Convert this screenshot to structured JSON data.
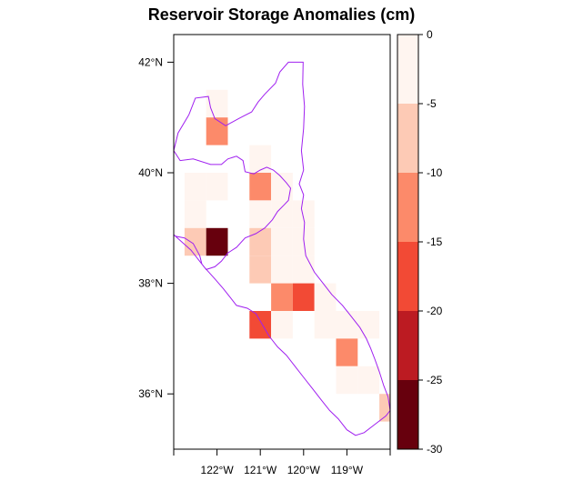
{
  "title": "Reservoir Storage Anomalies  (cm)",
  "map": {
    "lon_range": [
      -123.0,
      -118.0
    ],
    "lat_range": [
      35.0,
      42.5
    ],
    "cell_size_deg": 0.5,
    "x_ticks": [
      {
        "value": -122,
        "label": "122°W"
      },
      {
        "value": -121,
        "label": "121°W"
      },
      {
        "value": -120,
        "label": "120°W"
      },
      {
        "value": -119,
        "label": "119°W"
      }
    ],
    "y_ticks": [
      {
        "value": 36,
        "label": "36°N"
      },
      {
        "value": 38,
        "label": "38°N"
      },
      {
        "value": 40,
        "label": "40°N"
      },
      {
        "value": 42,
        "label": "42°N"
      }
    ],
    "boundary_color": "#a020f0",
    "cells": [
      {
        "lon": -122.0,
        "lat": 41.25,
        "bin": 0
      },
      {
        "lon": -122.0,
        "lat": 40.75,
        "bin": 2
      },
      {
        "lon": -121.0,
        "lat": 40.25,
        "bin": 0
      },
      {
        "lon": -122.5,
        "lat": 39.75,
        "bin": 0
      },
      {
        "lon": -122.0,
        "lat": 39.75,
        "bin": 0
      },
      {
        "lon": -121.0,
        "lat": 39.75,
        "bin": 2
      },
      {
        "lon": -120.5,
        "lat": 39.75,
        "bin": 0
      },
      {
        "lon": -122.5,
        "lat": 39.25,
        "bin": 0
      },
      {
        "lon": -121.0,
        "lat": 39.25,
        "bin": 0
      },
      {
        "lon": -120.5,
        "lat": 39.25,
        "bin": 0
      },
      {
        "lon": -120.0,
        "lat": 39.25,
        "bin": 0
      },
      {
        "lon": -122.5,
        "lat": 38.75,
        "bin": 1
      },
      {
        "lon": -122.0,
        "lat": 38.75,
        "bin": 5
      },
      {
        "lon": -121.0,
        "lat": 38.75,
        "bin": 1
      },
      {
        "lon": -120.5,
        "lat": 38.75,
        "bin": 0
      },
      {
        "lon": -120.0,
        "lat": 38.75,
        "bin": 0
      },
      {
        "lon": -121.0,
        "lat": 38.25,
        "bin": 1
      },
      {
        "lon": -120.5,
        "lat": 38.25,
        "bin": 0
      },
      {
        "lon": -120.0,
        "lat": 38.25,
        "bin": 0
      },
      {
        "lon": -120.5,
        "lat": 37.75,
        "bin": 2
      },
      {
        "lon": -120.0,
        "lat": 37.75,
        "bin": 3
      },
      {
        "lon": -119.5,
        "lat": 37.75,
        "bin": 0
      },
      {
        "lon": -121.0,
        "lat": 37.25,
        "bin": 3
      },
      {
        "lon": -120.5,
        "lat": 37.25,
        "bin": 0
      },
      {
        "lon": -119.5,
        "lat": 37.25,
        "bin": 0
      },
      {
        "lon": -119.0,
        "lat": 37.25,
        "bin": 0
      },
      {
        "lon": -118.5,
        "lat": 37.25,
        "bin": 0
      },
      {
        "lon": -119.0,
        "lat": 36.75,
        "bin": 2
      },
      {
        "lon": -119.0,
        "lat": 36.25,
        "bin": 0
      },
      {
        "lon": -118.5,
        "lat": 36.25,
        "bin": 0
      },
      {
        "lon": -118.0,
        "lat": 35.75,
        "bin": 1
      }
    ],
    "boundary": [
      [
        -120.01,
        42.0
      ],
      [
        -120.35,
        42.0
      ],
      [
        -120.55,
        41.82
      ],
      [
        -120.65,
        41.62
      ],
      [
        -120.9,
        41.42
      ],
      [
        -121.05,
        41.28
      ],
      [
        -121.2,
        41.1
      ],
      [
        -121.5,
        40.98
      ],
      [
        -121.8,
        40.85
      ],
      [
        -122.05,
        40.98
      ],
      [
        -122.15,
        41.18
      ],
      [
        -122.2,
        41.38
      ],
      [
        -122.5,
        41.35
      ],
      [
        -122.65,
        41.05
      ],
      [
        -122.9,
        40.72
      ],
      [
        -123.0,
        40.4
      ],
      [
        -122.85,
        40.22
      ],
      [
        -122.55,
        40.25
      ],
      [
        -122.15,
        40.15
      ],
      [
        -121.9,
        40.15
      ],
      [
        -121.75,
        40.25
      ],
      [
        -121.55,
        40.3
      ],
      [
        -121.4,
        40.22
      ],
      [
        -121.35,
        40.02
      ],
      [
        -121.15,
        39.98
      ],
      [
        -121.0,
        40.05
      ],
      [
        -120.85,
        40.1
      ],
      [
        -120.7,
        40.05
      ],
      [
        -120.55,
        39.95
      ],
      [
        -120.4,
        39.82
      ],
      [
        -120.3,
        39.72
      ],
      [
        -120.35,
        39.5
      ],
      [
        -120.45,
        39.42
      ],
      [
        -120.6,
        39.3
      ],
      [
        -120.72,
        39.15
      ],
      [
        -120.9,
        39.0
      ],
      [
        -121.1,
        38.9
      ],
      [
        -121.35,
        38.82
      ],
      [
        -121.55,
        38.65
      ],
      [
        -121.75,
        38.55
      ],
      [
        -121.9,
        38.4
      ],
      [
        -122.05,
        38.3
      ],
      [
        -122.25,
        38.25
      ],
      [
        -122.35,
        38.35
      ],
      [
        -122.4,
        38.5
      ],
      [
        -122.55,
        38.72
      ],
      [
        -122.75,
        38.82
      ],
      [
        -122.95,
        38.85
      ],
      [
        -123.0,
        38.88
      ],
      [
        -122.6,
        38.6
      ],
      [
        -122.3,
        38.3
      ],
      [
        -122.05,
        38.08
      ],
      [
        -121.85,
        37.9
      ],
      [
        -121.7,
        37.75
      ],
      [
        -121.55,
        37.6
      ],
      [
        -121.3,
        37.55
      ],
      [
        -121.1,
        37.45
      ],
      [
        -120.95,
        37.25
      ],
      [
        -120.8,
        37.05
      ],
      [
        -120.6,
        36.85
      ],
      [
        -120.4,
        36.7
      ],
      [
        -120.2,
        36.5
      ],
      [
        -120.0,
        36.3
      ],
      [
        -119.8,
        36.1
      ],
      [
        -119.6,
        35.9
      ],
      [
        -119.4,
        35.7
      ],
      [
        -119.2,
        35.55
      ],
      [
        -119.0,
        35.35
      ],
      [
        -118.8,
        35.25
      ],
      [
        -118.6,
        35.3
      ],
      [
        -118.35,
        35.45
      ],
      [
        -118.1,
        35.6
      ],
      [
        -118.0,
        35.7
      ],
      [
        -118.05,
        35.95
      ],
      [
        -118.15,
        36.15
      ],
      [
        -118.25,
        36.4
      ],
      [
        -118.35,
        36.62
      ],
      [
        -118.45,
        36.82
      ],
      [
        -118.55,
        37.0
      ],
      [
        -118.7,
        37.2
      ],
      [
        -118.9,
        37.4
      ],
      [
        -119.1,
        37.6
      ],
      [
        -119.35,
        37.8
      ],
      [
        -119.55,
        38.0
      ],
      [
        -119.75,
        38.2
      ],
      [
        -119.95,
        38.5
      ],
      [
        -120.0,
        38.8
      ],
      [
        -119.98,
        39.1
      ],
      [
        -120.05,
        39.35
      ],
      [
        -120.0,
        39.6
      ],
      [
        -120.1,
        39.8
      ],
      [
        -120.0,
        40.05
      ],
      [
        -120.05,
        40.4
      ],
      [
        -120.0,
        40.8
      ],
      [
        -119.98,
        41.2
      ],
      [
        -120.02,
        41.6
      ],
      [
        -120.01,
        42.0
      ]
    ]
  },
  "legend": {
    "labels": [
      "0",
      "-5",
      "-10",
      "-15",
      "-20",
      "-25",
      "-30"
    ],
    "colors": [
      "#fff5f0",
      "#fdcab5",
      "#fc8a6a",
      "#f24a35",
      "#bc1b22",
      "#67000d"
    ]
  }
}
